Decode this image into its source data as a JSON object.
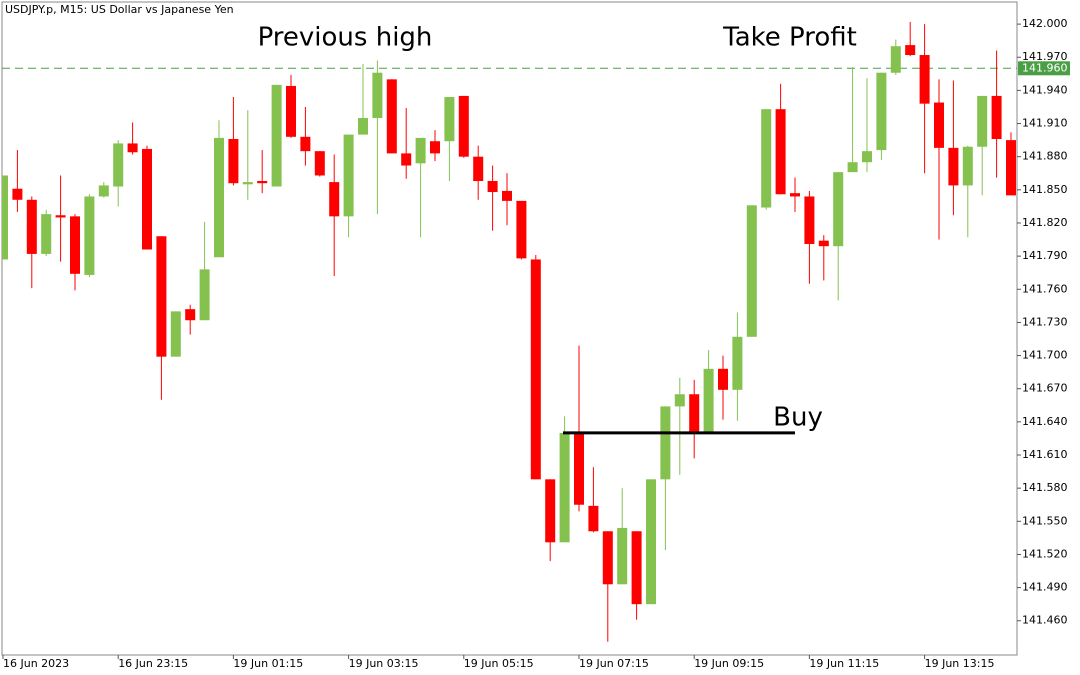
{
  "chart_data": {
    "type": "candlestick",
    "title": "USDJPY.p, M15:  US Dollar vs Japanese Yen",
    "annotations": [
      "Previous high",
      "Take Profit",
      "Buy"
    ],
    "categories": [
      "16 Jun 2023",
      null,
      null,
      null,
      null,
      null,
      null,
      null,
      "16 Jun 23:15",
      null,
      null,
      null,
      null,
      null,
      null,
      null,
      "19 Jun 01:15",
      null,
      null,
      null,
      null,
      null,
      null,
      null,
      "19 Jun 03:15",
      null,
      null,
      null,
      null,
      null,
      null,
      null,
      "19 Jun 05:15",
      null,
      null,
      null,
      null,
      null,
      null,
      null,
      "19 Jun 07:15",
      null,
      null,
      null,
      null,
      null,
      null,
      null,
      "19 Jun 09:15",
      null,
      null,
      null,
      null,
      null,
      null,
      null,
      "19 Jun 11:15",
      null,
      null,
      null,
      null,
      null,
      null,
      null,
      "19 Jun 13:15",
      null,
      null,
      null,
      null,
      null,
      null
    ],
    "open": [
      141.787,
      141.851,
      141.841,
      141.792,
      141.827,
      141.826,
      141.773,
      141.844,
      141.853,
      141.892,
      141.887,
      141.808,
      141.699,
      141.742,
      141.732,
      141.789,
      141.896,
      141.855,
      141.858,
      141.853,
      141.944,
      141.898,
      141.885,
      141.857,
      141.826,
      141.9,
      141.915,
      141.95,
      141.883,
      141.874,
      141.894,
      141.894,
      141.935,
      141.88,
      141.858,
      141.849,
      141.84,
      141.787,
      141.588,
      141.531,
      141.631,
      141.564,
      141.541,
      141.493,
      141.541,
      141.475,
      141.588,
      141.654,
      141.665,
      141.631,
      141.688,
      141.669,
      141.717,
      141.834,
      141.923,
      141.847,
      141.844,
      141.804,
      141.799,
      141.866,
      141.875,
      141.886,
      141.956,
      141.981,
      141.972,
      141.929,
      141.888,
      141.854,
      141.889,
      141.935,
      141.895
    ],
    "high": [
      141.863,
      141.886,
      141.844,
      141.832,
      141.863,
      141.828,
      141.846,
      141.857,
      141.895,
      141.911,
      141.89,
      141.808,
      141.74,
      141.746,
      141.821,
      141.913,
      141.934,
      141.922,
      141.886,
      141.945,
      141.954,
      141.925,
      141.885,
      141.882,
      141.9,
      141.964,
      141.967,
      141.95,
      141.924,
      141.897,
      141.904,
      141.934,
      141.935,
      141.89,
      141.872,
      141.865,
      141.84,
      141.791,
      141.588,
      141.645,
      141.709,
      141.599,
      141.541,
      141.58,
      141.541,
      141.588,
      141.654,
      141.68,
      141.678,
      141.705,
      141.7,
      141.739,
      141.836,
      141.923,
      141.946,
      141.861,
      141.849,
      141.809,
      141.866,
      141.961,
      141.951,
      141.956,
      141.986,
      142.002,
      142.0,
      141.95,
      141.949,
      141.89,
      141.935,
      141.976,
      141.902
    ],
    "low": [
      141.787,
      141.83,
      141.761,
      141.79,
      141.785,
      141.759,
      141.771,
      141.843,
      141.835,
      141.882,
      141.796,
      141.66,
      141.699,
      141.719,
      141.732,
      141.789,
      141.854,
      141.841,
      141.847,
      141.853,
      141.897,
      141.872,
      141.862,
      141.772,
      141.807,
      141.9,
      141.828,
      141.883,
      141.86,
      141.807,
      141.876,
      141.858,
      141.879,
      141.841,
      141.813,
      141.818,
      141.787,
      141.588,
      141.514,
      141.531,
      141.559,
      141.54,
      141.441,
      141.493,
      141.461,
      141.475,
      141.524,
      141.592,
      141.607,
      141.631,
      141.642,
      141.641,
      141.717,
      141.832,
      141.846,
      141.83,
      141.765,
      141.768,
      141.75,
      141.866,
      141.866,
      141.877,
      141.954,
      141.971,
      141.865,
      141.805,
      141.827,
      141.807,
      141.845,
      141.861,
      141.845
    ],
    "close": [
      141.863,
      141.841,
      141.792,
      141.828,
      141.825,
      141.774,
      141.844,
      141.854,
      141.892,
      141.884,
      141.796,
      141.699,
      141.74,
      141.732,
      141.778,
      141.897,
      141.856,
      141.857,
      141.856,
      141.945,
      141.898,
      141.885,
      141.863,
      141.826,
      141.9,
      141.915,
      141.956,
      141.883,
      141.872,
      141.897,
      141.883,
      141.934,
      141.88,
      141.858,
      141.848,
      141.84,
      141.788,
      141.588,
      141.531,
      141.63,
      141.565,
      141.541,
      141.493,
      141.544,
      141.475,
      141.588,
      141.654,
      141.665,
      141.631,
      141.688,
      141.669,
      141.717,
      141.836,
      141.923,
      141.846,
      141.844,
      141.801,
      141.799,
      141.866,
      141.875,
      141.885,
      141.956,
      141.98,
      141.972,
      141.928,
      141.888,
      141.854,
      141.889,
      141.935,
      141.896,
      141.845
    ],
    "up_color": "#85c14f",
    "down_color": "#ff0000",
    "ylim": [
      141.429,
      142.02
    ],
    "yticks": [
      {
        "value": 142.0,
        "label": "142.000"
      },
      {
        "value": 141.97,
        "label": "141.970"
      },
      {
        "value": 141.94,
        "label": "141.940"
      },
      {
        "value": 141.91,
        "label": "141.910"
      },
      {
        "value": 141.88,
        "label": "141.880"
      },
      {
        "value": 141.85,
        "label": "141.850"
      },
      {
        "value": 141.82,
        "label": "141.820"
      },
      {
        "value": 141.79,
        "label": "141.790"
      },
      {
        "value": 141.76,
        "label": "141.760"
      },
      {
        "value": 141.73,
        "label": "141.730"
      },
      {
        "value": 141.7,
        "label": "141.700"
      },
      {
        "value": 141.67,
        "label": "141.670"
      },
      {
        "value": 141.64,
        "label": "141.640"
      },
      {
        "value": 141.61,
        "label": "141.610"
      },
      {
        "value": 141.58,
        "label": "141.580"
      },
      {
        "value": 141.55,
        "label": "141.550"
      },
      {
        "value": 141.52,
        "label": "141.520"
      },
      {
        "value": 141.49,
        "label": "141.490"
      },
      {
        "value": 141.46,
        "label": "141.460"
      }
    ],
    "level": {
      "value": 141.96,
      "label": "141.960",
      "color": "#4a9f45"
    },
    "buy_level": 141.63,
    "grid": false
  }
}
